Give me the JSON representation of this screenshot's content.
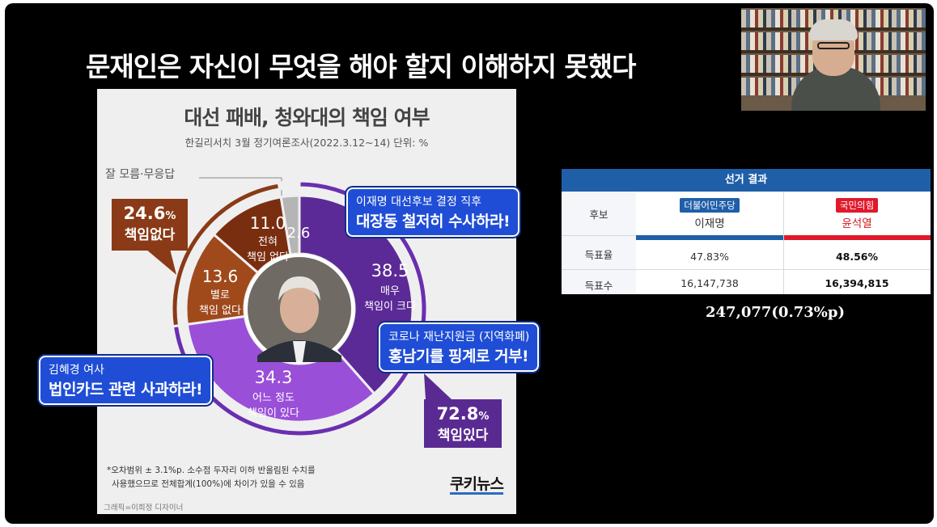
{
  "headline": "문재인은 자신이 무엇을 해야 할지 이해하지 못했다",
  "infographic": {
    "title": "대선 패배, 청와대의 책임 여부",
    "source": "한길리서치 3월 정기여론조사(2022.3.12~14) 단위: %",
    "dont_know_label": "잘 모름·무응답",
    "total_no": {
      "value": "24.6",
      "unit": "%",
      "label": "책임없다"
    },
    "total_yes": {
      "value": "72.8",
      "unit": "%",
      "label": "책임있다"
    },
    "footnote_line1": "*오차범위 ± 3.1%p. 소수점 두자리 이하 반올림된 수치를",
    "footnote_line2": "사용했으므로 전체합계(100%)에 차이가 있을 수 있음",
    "credit": "그래픽=이희정 디자이너",
    "logo": "쿠키뉴스"
  },
  "chart_data": {
    "type": "pie",
    "title": "대선 패배, 청와대의 책임 여부",
    "subtitle": "한길리서치 3월 정기여론조사(2022.3.12~14) 단위: %",
    "slices": [
      {
        "label": "매우 책임이 크다",
        "value": 38.5,
        "color": "#5b2a96"
      },
      {
        "label": "어느 정도 책임이 있다",
        "value": 34.3,
        "color": "#9a4fd8"
      },
      {
        "label": "별로 책임 없다",
        "value": 13.6,
        "color": "#a04a1c"
      },
      {
        "label": "전혀 책임 없다",
        "value": 11.0,
        "color": "#7a2e10"
      },
      {
        "label": "잘 모름·무응답",
        "value": 2.6,
        "color": "#b5b5b5"
      }
    ],
    "groups": [
      {
        "label": "책임있다",
        "value": 72.8,
        "color": "#6a2fb0"
      },
      {
        "label": "책임없다",
        "value": 24.6,
        "color": "#8a3a16"
      }
    ],
    "slice_text": {
      "s0": {
        "value": "38.5",
        "line1": "매우",
        "line2": "책임이 크다"
      },
      "s1": {
        "value": "34.3",
        "line1": "어느 정도",
        "line2": "책임이 있다"
      },
      "s2": {
        "value": "13.6",
        "line1": "별로",
        "line2": "책임 없다"
      },
      "s3": {
        "value": "11.0",
        "line1": "전혀",
        "line2": "책임 없다"
      },
      "s4": {
        "value": "2.6"
      }
    }
  },
  "callouts": {
    "lee": {
      "line1": "이재명 대선후보 결정 직후",
      "line2": "대장동 철저히 수사하라!"
    },
    "corona": {
      "line1": "코로나 재난지원금 (지역화폐)",
      "line2": "홍남기를 핑계로 거부!"
    },
    "kim": {
      "line1": "김혜경 여사",
      "line2": "법인카드 관련 사과하라!"
    }
  },
  "results": {
    "title": "선거 결과",
    "row_candidate": "후보",
    "row_rate": "득표율",
    "row_votes": "득표수",
    "lee": {
      "party": "더불어민주당",
      "party_color": "#1f5fa8",
      "name": "이재명",
      "rate": "47.83%",
      "votes": "16,147,738"
    },
    "yoon": {
      "party": "국민의힘",
      "party_color": "#e0192b",
      "name": "윤석열",
      "rate": "48.56%",
      "votes": "16,394,815"
    },
    "difference": "247,077(0.73%p)"
  }
}
